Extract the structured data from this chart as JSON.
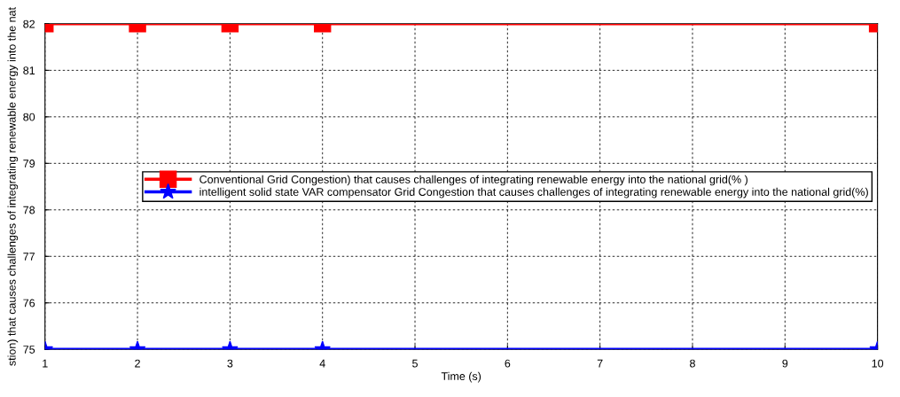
{
  "chart_data": {
    "type": "line",
    "xlabel": "Time (s)",
    "ylabel": "stion) that causes challenges of integrating renewable energy into the nat",
    "series": [
      {
        "name": "Conventional Grid Congestion) that causes challenges of integrating renewable energy into the national grid(% )",
        "color": "#ff0000",
        "marker": "square",
        "x": [
          1,
          2,
          3,
          4,
          10
        ],
        "values": [
          82,
          82,
          82,
          82,
          82
        ]
      },
      {
        "name": "intelligent solid state VAR compensator Grid Congestion that causes challenges of integrating renewable energy into the national grid(%)",
        "color": "#0000ff",
        "marker": "star",
        "x": [
          1,
          2,
          3,
          4,
          10
        ],
        "values": [
          75,
          75,
          75,
          75,
          75
        ]
      }
    ],
    "xlim": [
      1,
      10
    ],
    "xticks": [
      1,
      2,
      3,
      4,
      5,
      6,
      7,
      8,
      9,
      10
    ],
    "ylim": [
      75,
      82
    ],
    "yticks": [
      75,
      76,
      77,
      78,
      79,
      80,
      81,
      82
    ],
    "grid": true,
    "legend": "center right",
    "line_style": "solid"
  }
}
